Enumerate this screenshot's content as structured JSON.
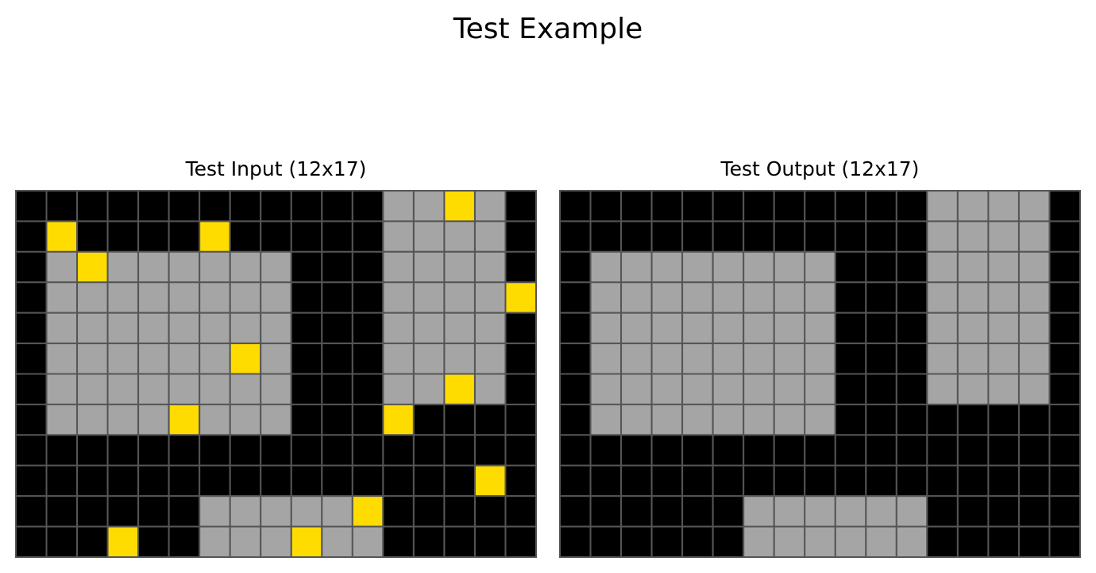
{
  "title": "Test Example",
  "colors": {
    "0": "#000000",
    "5": "#a5a5a5",
    "4": "#ffdc00",
    "gridline": "#555555"
  },
  "input": {
    "title": "Test Input (12x17)",
    "rows": [
      [
        0,
        0,
        0,
        0,
        0,
        0,
        0,
        0,
        0,
        0,
        0,
        0,
        5,
        5,
        4,
        5,
        0
      ],
      [
        0,
        4,
        0,
        0,
        0,
        0,
        4,
        0,
        0,
        0,
        0,
        0,
        5,
        5,
        5,
        5,
        0
      ],
      [
        0,
        5,
        4,
        5,
        5,
        5,
        5,
        5,
        5,
        0,
        0,
        0,
        5,
        5,
        5,
        5,
        0
      ],
      [
        0,
        5,
        5,
        5,
        5,
        5,
        5,
        5,
        5,
        0,
        0,
        0,
        5,
        5,
        5,
        5,
        4
      ],
      [
        0,
        5,
        5,
        5,
        5,
        5,
        5,
        5,
        5,
        0,
        0,
        0,
        5,
        5,
        5,
        5,
        0
      ],
      [
        0,
        5,
        5,
        5,
        5,
        5,
        5,
        4,
        5,
        0,
        0,
        0,
        5,
        5,
        5,
        5,
        0
      ],
      [
        0,
        5,
        5,
        5,
        5,
        5,
        5,
        5,
        5,
        0,
        0,
        0,
        5,
        5,
        4,
        5,
        0
      ],
      [
        0,
        5,
        5,
        5,
        5,
        4,
        5,
        5,
        5,
        0,
        0,
        0,
        4,
        0,
        0,
        0,
        0
      ],
      [
        0,
        0,
        0,
        0,
        0,
        0,
        0,
        0,
        0,
        0,
        0,
        0,
        0,
        0,
        0,
        0,
        0
      ],
      [
        0,
        0,
        0,
        0,
        0,
        0,
        0,
        0,
        0,
        0,
        0,
        0,
        0,
        0,
        0,
        4,
        0
      ],
      [
        0,
        0,
        0,
        0,
        0,
        0,
        5,
        5,
        5,
        5,
        5,
        4,
        0,
        0,
        0,
        0,
        0
      ],
      [
        0,
        0,
        0,
        4,
        0,
        0,
        5,
        5,
        5,
        4,
        5,
        5,
        0,
        0,
        0,
        0,
        0
      ]
    ]
  },
  "output": {
    "title": "Test Output (12x17)",
    "rows": [
      [
        0,
        0,
        0,
        0,
        0,
        0,
        0,
        0,
        0,
        0,
        0,
        0,
        5,
        5,
        5,
        5,
        0
      ],
      [
        0,
        0,
        0,
        0,
        0,
        0,
        0,
        0,
        0,
        0,
        0,
        0,
        5,
        5,
        5,
        5,
        0
      ],
      [
        0,
        5,
        5,
        5,
        5,
        5,
        5,
        5,
        5,
        0,
        0,
        0,
        5,
        5,
        5,
        5,
        0
      ],
      [
        0,
        5,
        5,
        5,
        5,
        5,
        5,
        5,
        5,
        0,
        0,
        0,
        5,
        5,
        5,
        5,
        0
      ],
      [
        0,
        5,
        5,
        5,
        5,
        5,
        5,
        5,
        5,
        0,
        0,
        0,
        5,
        5,
        5,
        5,
        0
      ],
      [
        0,
        5,
        5,
        5,
        5,
        5,
        5,
        5,
        5,
        0,
        0,
        0,
        5,
        5,
        5,
        5,
        0
      ],
      [
        0,
        5,
        5,
        5,
        5,
        5,
        5,
        5,
        5,
        0,
        0,
        0,
        5,
        5,
        5,
        5,
        0
      ],
      [
        0,
        5,
        5,
        5,
        5,
        5,
        5,
        5,
        5,
        0,
        0,
        0,
        0,
        0,
        0,
        0,
        0
      ],
      [
        0,
        0,
        0,
        0,
        0,
        0,
        0,
        0,
        0,
        0,
        0,
        0,
        0,
        0,
        0,
        0,
        0
      ],
      [
        0,
        0,
        0,
        0,
        0,
        0,
        0,
        0,
        0,
        0,
        0,
        0,
        0,
        0,
        0,
        0,
        0
      ],
      [
        0,
        0,
        0,
        0,
        0,
        0,
        5,
        5,
        5,
        5,
        5,
        5,
        0,
        0,
        0,
        0,
        0
      ],
      [
        0,
        0,
        0,
        0,
        0,
        0,
        5,
        5,
        5,
        5,
        5,
        5,
        0,
        0,
        0,
        0,
        0
      ]
    ]
  }
}
